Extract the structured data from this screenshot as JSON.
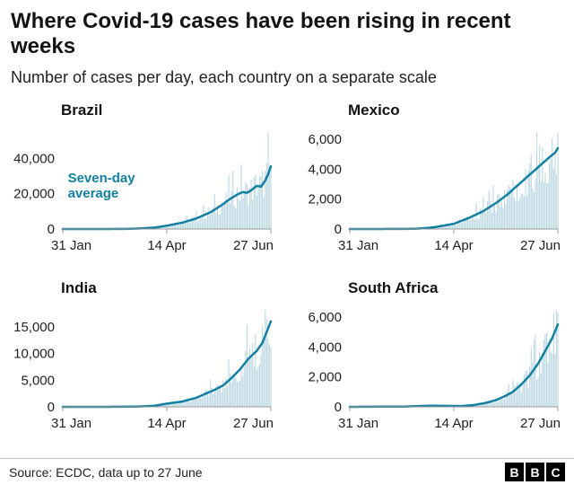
{
  "header": {
    "title": "Where Covid-19 cases have been rising in recent weeks",
    "subtitle": "Number of cases per day, each country on a separate scale"
  },
  "footer": {
    "source": "Source: ECDC, data up to 27 June",
    "logo_letters": [
      "B",
      "B",
      "C"
    ]
  },
  "colors": {
    "line": "#1380A1",
    "bars": "#bcd8e2",
    "axis": "#9b9b9b",
    "text": "#222222"
  },
  "chart_data": [
    {
      "type": "bar",
      "overlay": "line (seven-day average)",
      "title": "Brazil",
      "days": 148,
      "ylim": [
        0,
        56000
      ],
      "yticks": [
        {
          "v": 0,
          "label": "0"
        },
        {
          "v": 20000,
          "label": "20,000"
        },
        {
          "v": 40000,
          "label": "40,000"
        }
      ],
      "xticks": [
        {
          "d": 0,
          "label": "31 Jan",
          "anchor": "start"
        },
        {
          "d": 74,
          "label": "14 Apr",
          "anchor": "middle"
        },
        {
          "d": 148,
          "label": "27 Jun",
          "anchor": "end"
        }
      ],
      "seven_day_avg_points": [
        [
          0,
          0
        ],
        [
          30,
          5
        ],
        [
          45,
          60
        ],
        [
          55,
          300
        ],
        [
          65,
          800
        ],
        [
          74,
          1900
        ],
        [
          85,
          3600
        ],
        [
          95,
          6000
        ],
        [
          105,
          9500
        ],
        [
          112,
          13000
        ],
        [
          118,
          16500
        ],
        [
          124,
          19500
        ],
        [
          128,
          21000
        ],
        [
          131,
          20500
        ],
        [
          134,
          22000
        ],
        [
          138,
          24500
        ],
        [
          141,
          24000
        ],
        [
          144,
          27500
        ],
        [
          146,
          31000
        ],
        [
          148,
          35500
        ]
      ],
      "bar_jitter": {
        "base": 0.62,
        "spread": 0.8,
        "seed": 12.9898
      },
      "annotation": {
        "line1": "Seven-day",
        "line2": "average",
        "d": 1,
        "v": 26500
      }
    },
    {
      "type": "bar",
      "overlay": "line (seven-day average)",
      "title": "Mexico",
      "days": 148,
      "ylim": [
        0,
        6600
      ],
      "yticks": [
        {
          "v": 0,
          "label": "0"
        },
        {
          "v": 2000,
          "label": "2,000"
        },
        {
          "v": 4000,
          "label": "4,000"
        },
        {
          "v": 6000,
          "label": "6,000"
        }
      ],
      "xticks": [
        {
          "d": 0,
          "label": "31 Jan",
          "anchor": "start"
        },
        {
          "d": 74,
          "label": "14 Apr",
          "anchor": "middle"
        },
        {
          "d": 148,
          "label": "27 Jun",
          "anchor": "end"
        }
      ],
      "seven_day_avg_points": [
        [
          0,
          0
        ],
        [
          40,
          5
        ],
        [
          50,
          30
        ],
        [
          60,
          120
        ],
        [
          74,
          350
        ],
        [
          85,
          750
        ],
        [
          95,
          1200
        ],
        [
          105,
          1800
        ],
        [
          112,
          2300
        ],
        [
          118,
          2800
        ],
        [
          124,
          3300
        ],
        [
          130,
          3800
        ],
        [
          136,
          4300
        ],
        [
          142,
          4800
        ],
        [
          146,
          5100
        ],
        [
          148,
          5400
        ]
      ],
      "bar_jitter": {
        "base": 0.62,
        "spread": 0.8,
        "seed": 78.233
      }
    },
    {
      "type": "bar",
      "overlay": "line (seven-day average)",
      "title": "India",
      "days": 148,
      "ylim": [
        0,
        18500
      ],
      "yticks": [
        {
          "v": 0,
          "label": "0"
        },
        {
          "v": 5000,
          "label": "5,000"
        },
        {
          "v": 10000,
          "label": "10,000"
        },
        {
          "v": 15000,
          "label": "15,000"
        }
      ],
      "xticks": [
        {
          "d": 0,
          "label": "31 Jan",
          "anchor": "start"
        },
        {
          "d": 74,
          "label": "14 Apr",
          "anchor": "middle"
        },
        {
          "d": 148,
          "label": "27 Jun",
          "anchor": "end"
        }
      ],
      "seven_day_avg_points": [
        [
          0,
          0
        ],
        [
          40,
          10
        ],
        [
          55,
          70
        ],
        [
          65,
          200
        ],
        [
          74,
          600
        ],
        [
          85,
          1000
        ],
        [
          95,
          1700
        ],
        [
          102,
          2500
        ],
        [
          108,
          3200
        ],
        [
          114,
          4000
        ],
        [
          120,
          5400
        ],
        [
          126,
          7000
        ],
        [
          132,
          9000
        ],
        [
          138,
          10500
        ],
        [
          142,
          12000
        ],
        [
          145,
          14000
        ],
        [
          148,
          16000
        ]
      ],
      "bar_jitter": {
        "base": 0.62,
        "spread": 0.8,
        "seed": 39.425
      }
    },
    {
      "type": "bar",
      "overlay": "line (seven-day average)",
      "title": "South Africa",
      "days": 148,
      "ylim": [
        0,
        6600
      ],
      "yticks": [
        {
          "v": 0,
          "label": "0"
        },
        {
          "v": 2000,
          "label": "2,000"
        },
        {
          "v": 4000,
          "label": "4,000"
        },
        {
          "v": 6000,
          "label": "6,000"
        }
      ],
      "xticks": [
        {
          "d": 0,
          "label": "31 Jan",
          "anchor": "start"
        },
        {
          "d": 74,
          "label": "14 Apr",
          "anchor": "middle"
        },
        {
          "d": 148,
          "label": "27 Jun",
          "anchor": "end"
        }
      ],
      "seven_day_avg_points": [
        [
          0,
          0
        ],
        [
          40,
          20
        ],
        [
          50,
          55
        ],
        [
          58,
          75
        ],
        [
          66,
          65
        ],
        [
          74,
          60
        ],
        [
          80,
          55
        ],
        [
          88,
          120
        ],
        [
          96,
          250
        ],
        [
          104,
          450
        ],
        [
          110,
          700
        ],
        [
          116,
          1000
        ],
        [
          122,
          1500
        ],
        [
          128,
          2100
        ],
        [
          134,
          2900
        ],
        [
          140,
          3900
        ],
        [
          144,
          4600
        ],
        [
          148,
          5500
        ]
      ],
      "bar_jitter": {
        "base": 0.62,
        "spread": 0.8,
        "seed": 94.673
      }
    }
  ]
}
